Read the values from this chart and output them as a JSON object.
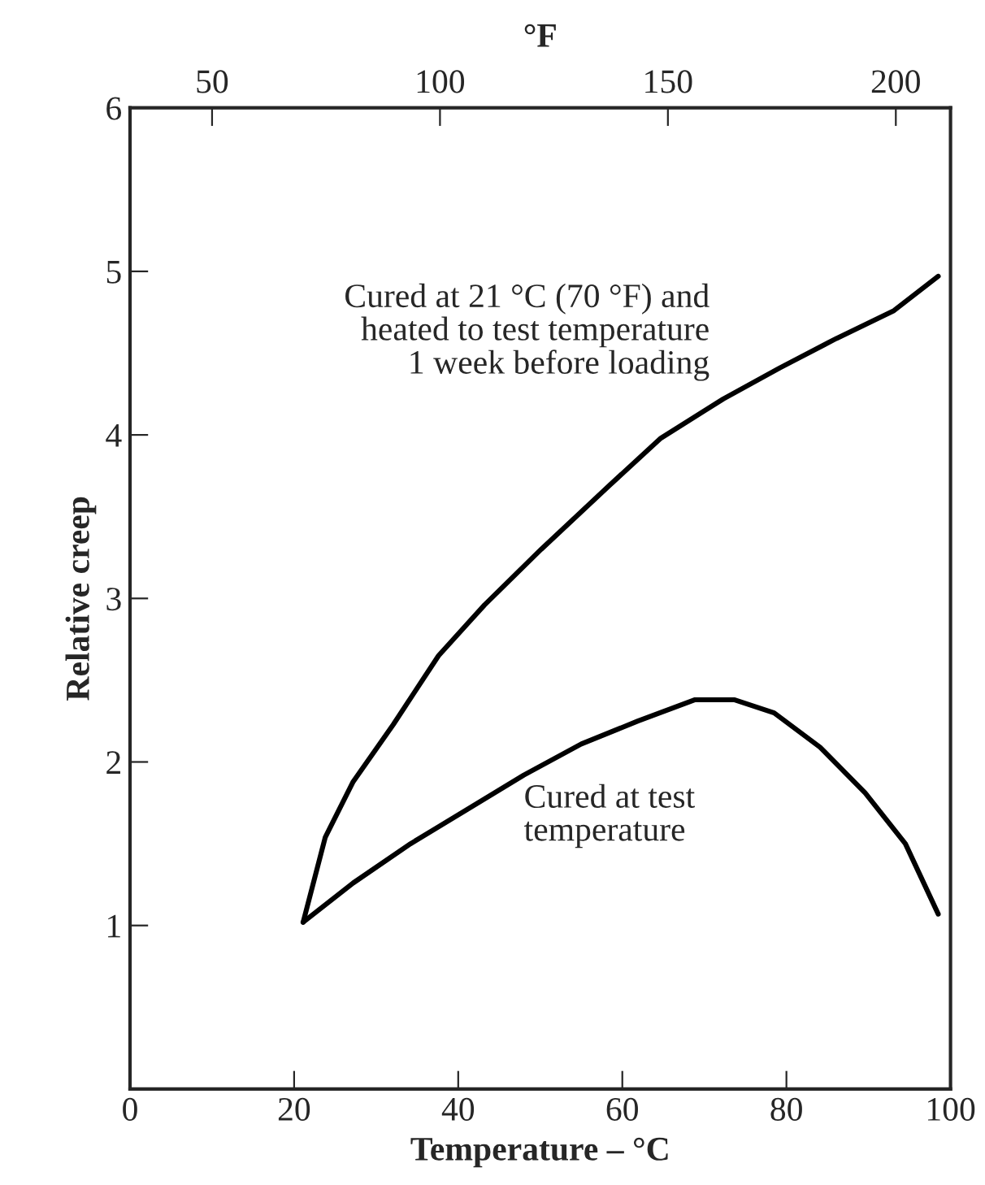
{
  "chart_data": {
    "type": "line",
    "xlabel": "Temperature – °C",
    "ylabel": "Relative creep",
    "x2label": "°F",
    "xlim": [
      0,
      100
    ],
    "xticks": [
      0,
      20,
      40,
      60,
      80,
      100
    ],
    "ylim": [
      0,
      6
    ],
    "yticks": [
      1,
      2,
      3,
      4,
      5,
      6
    ],
    "x2lim": [
      32,
      212
    ],
    "x2ticks": [
      50,
      100,
      150,
      200
    ],
    "grid": false,
    "marker": "none",
    "line_style": "solid",
    "series": [
      {
        "name": "Cured at 21 °C (70 °F) and\nheated to test temperature\n1 week before loading",
        "color": "#000000",
        "x": [
          21.1,
          23.8,
          27.2,
          32.1,
          37.6,
          43.2,
          50.1,
          58.4,
          64.7,
          72.3,
          79.2,
          86.1,
          93.1,
          98.5
        ],
        "values": [
          1.02,
          1.54,
          1.88,
          2.23,
          2.65,
          2.96,
          3.3,
          3.69,
          3.98,
          4.22,
          4.41,
          4.59,
          4.76,
          4.97
        ]
      },
      {
        "name": "Cured at test\ntemperature",
        "color": "#000000",
        "x": [
          21.1,
          27.2,
          34.2,
          41.1,
          48.0,
          55.0,
          61.9,
          68.8,
          73.7,
          78.5,
          84.1,
          89.6,
          94.5,
          98.5
        ],
        "values": [
          1.02,
          1.26,
          1.5,
          1.71,
          1.92,
          2.11,
          2.25,
          2.38,
          2.38,
          2.3,
          2.09,
          1.81,
          1.5,
          1.07
        ]
      }
    ]
  }
}
